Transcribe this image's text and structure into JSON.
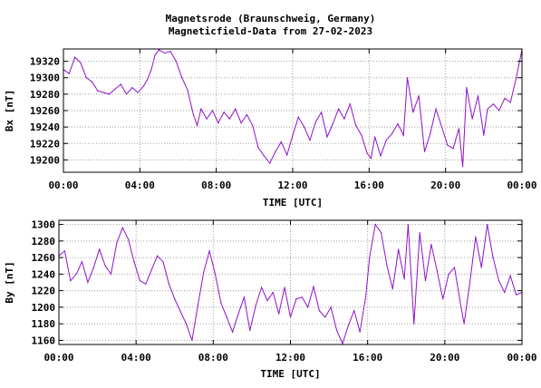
{
  "header": {
    "title": "Magnetsrode (Braunschweig, Germany)",
    "subtitle": "Magneticfield-Data from 27-02-2023"
  },
  "colors": {
    "series": "#8f12c8",
    "grid": "#a0a0a0",
    "frame": "#000000",
    "background": "#ffffff"
  },
  "chart_data": [
    {
      "type": "line",
      "id": "bx",
      "ylabel": "Bx [nT]",
      "xlabel": "TIME [UTC]",
      "xlim": [
        0,
        24
      ],
      "ylim": [
        19185,
        19335
      ],
      "xticks": [
        0,
        4,
        8,
        12,
        16,
        20,
        24
      ],
      "xtick_labels": [
        "00:00",
        "04:00",
        "08:00",
        "12:00",
        "16:00",
        "20:00",
        "00:00"
      ],
      "yticks": [
        19200,
        19220,
        19240,
        19260,
        19280,
        19300,
        19320
      ],
      "ytick_labels": [
        "19200",
        "19220",
        "19240",
        "19260",
        "19280",
        "19300",
        "19320"
      ],
      "grid": true,
      "series": [
        {
          "x": [
            0,
            0.3,
            0.6,
            0.9,
            1.2,
            1.5,
            1.8,
            2.1,
            2.4,
            2.7,
            3.0,
            3.3,
            3.6,
            3.9,
            4.2,
            4.4,
            4.6,
            4.8,
            5.0,
            5.3,
            5.6,
            5.9,
            6.2,
            6.5,
            6.8,
            7.0,
            7.2,
            7.5,
            7.8,
            8.1,
            8.4,
            8.7,
            9.0,
            9.3,
            9.6,
            9.9,
            10.2,
            10.5,
            10.8,
            11.1,
            11.4,
            11.7,
            12.0,
            12.3,
            12.6,
            12.9,
            13.2,
            13.5,
            13.8,
            14.1,
            14.4,
            14.7,
            15.0,
            15.3,
            15.6,
            15.9,
            16.1,
            16.3,
            16.6,
            16.9,
            17.2,
            17.5,
            17.8,
            18.0,
            18.3,
            18.6,
            18.9,
            19.2,
            19.5,
            19.8,
            20.1,
            20.4,
            20.7,
            20.9,
            21.1,
            21.4,
            21.7,
            22.0,
            22.2,
            22.5,
            22.8,
            23.1,
            23.4,
            23.7,
            24.0
          ],
          "y": [
            19310,
            19305,
            19325,
            19318,
            19300,
            19295,
            19284,
            19282,
            19280,
            19286,
            19292,
            19280,
            19288,
            19282,
            19290,
            19298,
            19310,
            19328,
            19334,
            19330,
            19332,
            19320,
            19300,
            19285,
            19255,
            19242,
            19262,
            19250,
            19260,
            19245,
            19258,
            19250,
            19262,
            19245,
            19255,
            19242,
            19215,
            19205,
            19196,
            19210,
            19222,
            19206,
            19230,
            19252,
            19240,
            19224,
            19246,
            19258,
            19228,
            19244,
            19262,
            19250,
            19268,
            19242,
            19230,
            19208,
            19202,
            19228,
            19205,
            19224,
            19232,
            19244,
            19230,
            19300,
            19258,
            19278,
            19210,
            19232,
            19262,
            19240,
            19218,
            19214,
            19238,
            19192,
            19288,
            19250,
            19278,
            19230,
            19262,
            19268,
            19260,
            19275,
            19270,
            19300,
            19334
          ]
        }
      ]
    },
    {
      "type": "line",
      "id": "by",
      "ylabel": "By [nT]",
      "xlabel": "TIME [UTC]",
      "xlim": [
        0,
        24
      ],
      "ylim": [
        1155,
        1305
      ],
      "xticks": [
        0,
        4,
        8,
        12,
        16,
        20,
        24
      ],
      "xtick_labels": [
        "00:00",
        "04:00",
        "08:00",
        "12:00",
        "16:00",
        "20:00",
        "00:00"
      ],
      "yticks": [
        1160,
        1180,
        1200,
        1220,
        1240,
        1260,
        1280,
        1300
      ],
      "ytick_labels": [
        "1160",
        "1180",
        "1200",
        "1220",
        "1240",
        "1260",
        "1280",
        "1300"
      ],
      "grid": true,
      "series": [
        {
          "x": [
            0,
            0.3,
            0.6,
            0.9,
            1.2,
            1.5,
            1.8,
            2.1,
            2.4,
            2.7,
            3.0,
            3.3,
            3.6,
            3.9,
            4.2,
            4.5,
            4.8,
            5.1,
            5.4,
            5.7,
            6.0,
            6.3,
            6.6,
            6.9,
            7.2,
            7.5,
            7.8,
            8.1,
            8.4,
            8.7,
            9.0,
            9.3,
            9.6,
            9.9,
            10.2,
            10.5,
            10.8,
            11.1,
            11.4,
            11.7,
            12.0,
            12.3,
            12.6,
            12.9,
            13.2,
            13.5,
            13.8,
            14.1,
            14.4,
            14.7,
            15.0,
            15.3,
            15.6,
            15.9,
            16.1,
            16.4,
            16.7,
            17.0,
            17.3,
            17.6,
            17.9,
            18.1,
            18.4,
            18.7,
            19.0,
            19.3,
            19.6,
            19.9,
            20.2,
            20.5,
            20.8,
            21.0,
            21.3,
            21.6,
            21.9,
            22.2,
            22.5,
            22.8,
            23.1,
            23.4,
            23.7,
            24.0
          ],
          "y": [
            1262,
            1268,
            1232,
            1240,
            1255,
            1230,
            1248,
            1270,
            1250,
            1240,
            1278,
            1296,
            1282,
            1255,
            1232,
            1228,
            1245,
            1262,
            1255,
            1228,
            1210,
            1195,
            1180,
            1160,
            1202,
            1242,
            1268,
            1240,
            1205,
            1188,
            1170,
            1192,
            1212,
            1172,
            1202,
            1224,
            1208,
            1218,
            1192,
            1224,
            1188,
            1210,
            1212,
            1200,
            1225,
            1196,
            1188,
            1200,
            1172,
            1156,
            1178,
            1196,
            1170,
            1212,
            1260,
            1300,
            1290,
            1250,
            1222,
            1270,
            1234,
            1300,
            1180,
            1290,
            1232,
            1276,
            1244,
            1210,
            1240,
            1248,
            1206,
            1180,
            1230,
            1285,
            1248,
            1300,
            1260,
            1232,
            1218,
            1238,
            1215,
            1218
          ]
        }
      ]
    }
  ]
}
